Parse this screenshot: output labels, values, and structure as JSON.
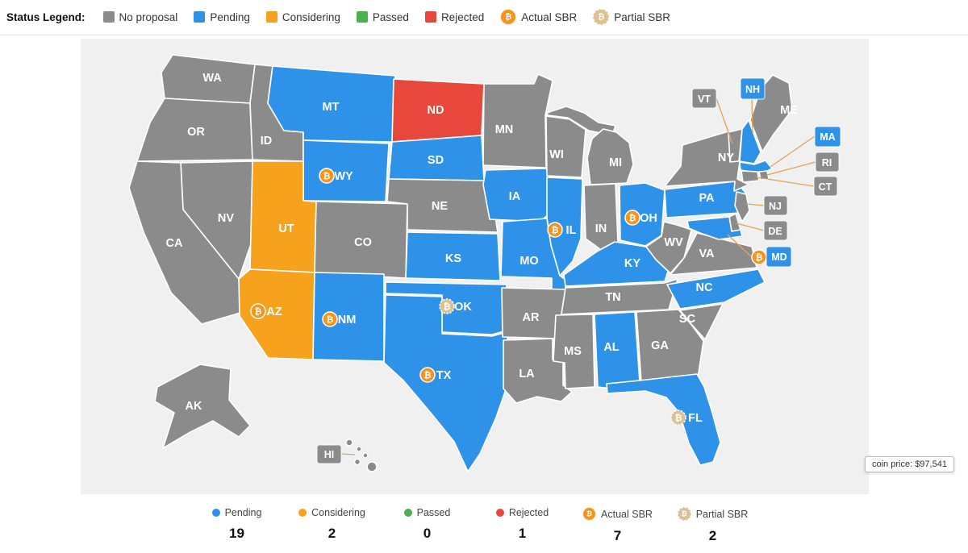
{
  "bitcoin_symbol": "₿",
  "status_legend": {
    "title": "Status Legend:",
    "items": [
      {
        "label": "No proposal",
        "status": "no_proposal",
        "marker": "square"
      },
      {
        "label": "Pending",
        "status": "pending",
        "marker": "square"
      },
      {
        "label": "Considering",
        "status": "considering",
        "marker": "square"
      },
      {
        "label": "Passed",
        "status": "passed",
        "marker": "square"
      },
      {
        "label": "Rejected",
        "status": "rejected",
        "marker": "square"
      },
      {
        "label": "Actual SBR",
        "status": "actual_sbr",
        "marker": "coin"
      },
      {
        "label": "Partial SBR",
        "status": "partial_sbr",
        "marker": "coin"
      }
    ]
  },
  "status_colors": {
    "no_proposal": "#8B8B8B",
    "pending": "#2E93E8",
    "considering": "#F6A21D",
    "passed": "#4CAF50",
    "rejected": "#E8483B",
    "actual_sbr": "#F7931A",
    "partial_sbr": "#DCC194"
  },
  "map": {
    "states": [
      {
        "code": "WA",
        "status": "no_proposal"
      },
      {
        "code": "OR",
        "status": "no_proposal"
      },
      {
        "code": "CA",
        "status": "no_proposal"
      },
      {
        "code": "NV",
        "status": "no_proposal"
      },
      {
        "code": "ID",
        "status": "no_proposal"
      },
      {
        "code": "MT",
        "status": "pending"
      },
      {
        "code": "WY",
        "status": "pending",
        "icon": "actual_sbr"
      },
      {
        "code": "UT",
        "status": "considering"
      },
      {
        "code": "CO",
        "status": "no_proposal"
      },
      {
        "code": "AZ",
        "status": "considering",
        "icon": "actual_sbr"
      },
      {
        "code": "NM",
        "status": "pending",
        "icon": "actual_sbr"
      },
      {
        "code": "ND",
        "status": "rejected"
      },
      {
        "code": "SD",
        "status": "pending"
      },
      {
        "code": "NE",
        "status": "no_proposal"
      },
      {
        "code": "KS",
        "status": "pending"
      },
      {
        "code": "OK",
        "status": "pending",
        "icon": "partial_sbr"
      },
      {
        "code": "TX",
        "status": "pending",
        "icon": "actual_sbr"
      },
      {
        "code": "MN",
        "status": "no_proposal"
      },
      {
        "code": "IA",
        "status": "pending"
      },
      {
        "code": "MO",
        "status": "pending"
      },
      {
        "code": "AR",
        "status": "no_proposal"
      },
      {
        "code": "LA",
        "status": "no_proposal"
      },
      {
        "code": "WI",
        "status": "no_proposal"
      },
      {
        "code": "IL",
        "status": "pending",
        "icon": "actual_sbr"
      },
      {
        "code": "IN",
        "status": "no_proposal"
      },
      {
        "code": "MI",
        "status": "no_proposal"
      },
      {
        "code": "OH",
        "status": "pending",
        "icon": "actual_sbr"
      },
      {
        "code": "KY",
        "status": "pending"
      },
      {
        "code": "TN",
        "status": "no_proposal"
      },
      {
        "code": "MS",
        "status": "no_proposal"
      },
      {
        "code": "AL",
        "status": "pending"
      },
      {
        "code": "GA",
        "status": "no_proposal"
      },
      {
        "code": "FL",
        "status": "pending",
        "icon": "partial_sbr"
      },
      {
        "code": "SC",
        "status": "no_proposal"
      },
      {
        "code": "NC",
        "status": "pending"
      },
      {
        "code": "VA",
        "status": "no_proposal"
      },
      {
        "code": "WV",
        "status": "no_proposal"
      },
      {
        "code": "PA",
        "status": "pending"
      },
      {
        "code": "NY",
        "status": "no_proposal"
      },
      {
        "code": "NJ",
        "status": "no_proposal"
      },
      {
        "code": "DE",
        "status": "no_proposal"
      },
      {
        "code": "MD",
        "status": "pending",
        "icon": "actual_sbr"
      },
      {
        "code": "VT",
        "status": "no_proposal"
      },
      {
        "code": "NH",
        "status": "pending"
      },
      {
        "code": "MA",
        "status": "pending"
      },
      {
        "code": "RI",
        "status": "no_proposal"
      },
      {
        "code": "CT",
        "status": "no_proposal"
      },
      {
        "code": "ME",
        "status": "no_proposal"
      },
      {
        "code": "AK",
        "status": "no_proposal"
      },
      {
        "code": "HI",
        "status": "no_proposal"
      }
    ]
  },
  "summary": {
    "items": [
      {
        "label": "Pending",
        "status": "pending",
        "marker": "dot",
        "count": "19"
      },
      {
        "label": "Considering",
        "status": "considering",
        "marker": "dot",
        "count": "2"
      },
      {
        "label": "Passed",
        "status": "passed",
        "marker": "dot",
        "count": "0"
      },
      {
        "label": "Rejected",
        "status": "rejected",
        "marker": "dot",
        "count": "1"
      },
      {
        "label": "Actual SBR",
        "status": "actual_sbr",
        "marker": "coin",
        "count": "7"
      },
      {
        "label": "Partial SBR",
        "status": "partial_sbr",
        "marker": "coin",
        "count": "2"
      }
    ]
  },
  "tooltip": {
    "text": "coin price: $97,541"
  }
}
